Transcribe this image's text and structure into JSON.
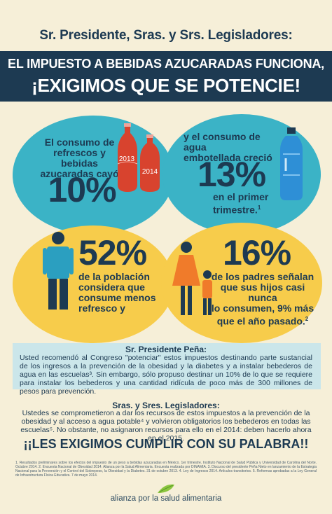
{
  "header": {
    "salutation": "Sr. Presidente, Sras. y Srs. Legisladores:",
    "banner_line1": "EL IMPUESTO A BEBIDAS AZUCARADAS FUNCIONA,",
    "banner_line2": "¡EXIGIMOS QUE SE POTENCIE!"
  },
  "stats": {
    "soda": {
      "text_line1": "El consumo de",
      "text_line2": "refrescos y bebidas",
      "text_line3": "azucaradas cayó",
      "value": "10%",
      "bottle_2013": "2013",
      "bottle_2014": "2014"
    },
    "water": {
      "text_line1": "y el consumo de agua",
      "text_line2": "embotellada creció",
      "value": "13%",
      "sub_line1": "en el primer",
      "sub_line2": "trimestre.",
      "sup": "1"
    },
    "population": {
      "value": "52%",
      "line1": "de la población",
      "line2": "considera que",
      "line3": "consume menos",
      "line4": "refresco y"
    },
    "parents": {
      "value": "16%",
      "line1": "de los padres señalan",
      "line2": "que sus hijos casi nunca",
      "line3": "lo consumen, 9% más",
      "line4": "que el año pasado.",
      "sup": "2"
    }
  },
  "president_section": {
    "title": "Sr. Presidente Peña:",
    "text": "Usted recomendó al Congreso \"potenciar\" estos impuestos destinando parte sustancial de los ingresos a la prevención de la obesidad y la diabetes y a instalar bebederos de agua en las escuelas³. Sin embargo, sólo propuso destinar un 10% de lo que se requiere para instalar los bebederos y una cantidad ridícula de poco más de 300 millones de pesos para prevención."
  },
  "legislators_section": {
    "title": "Sras. y Sres. Legisladores:",
    "text": "Ustedes se comprometieron a dar los recursos de estos impuestos a la prevención de la obesidad y al acceso a agua potable⁴ y volvieron obligatorios los bebederos en todas las escuelas⁵. No obstante, no asignaron recursos para ello en el 2014: deben hacerlo ahora en el 2015."
  },
  "call_to_action": "¡¡LES EXIGIMOS CUMPLIR CON SU PALABRA!!",
  "footnotes": "1. Resultados preliminares sobre los efectos del impuesto de un peso a bebidas azucaradas en México. 1er trimestre. Instituto Nacional de Salud Pública y Universidad de Carolina del Norte. Octubre 2014. 2. Encuesta Nacional de Obesidad 2014. Alianza por la Salud Alimentaria. Encuesta realizada por DINAMIA. 3. Discurso del presidente Peña Nieto en lanzamiento de la Estrategia Nacional para la Prevención y el Control del Sobrepeso, la Obesidad y la Diabetes. 31 de octubre 2013. 4. Ley de Ingresos 2014. Artículos transitorios. 5. Reformas aprobadas a la Ley General de Infraestructura Física Educativa. 7 de mayo 2014.",
  "logo": {
    "text": "alianza por la salud alimentaria"
  },
  "colors": {
    "navy": "#1d3a52",
    "teal": "#3bb3c6",
    "yellow": "#f7cc4b",
    "background": "#f6efd8",
    "red_bottle": "#d8432e",
    "orange_person": "#f07b2a"
  }
}
